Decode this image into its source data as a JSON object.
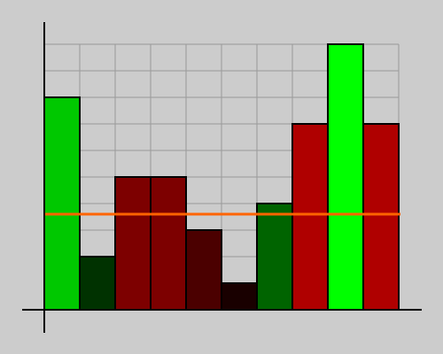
{
  "chart_data": {
    "type": "bar",
    "title": "",
    "xlabel": "",
    "ylabel": "",
    "categories": [
      "",
      "",
      "",
      "",
      "",
      "",
      "",
      "",
      "",
      ""
    ],
    "values": [
      8,
      2,
      5,
      5,
      3,
      1,
      4,
      7,
      10,
      7
    ],
    "bar_colors": [
      "#00c800",
      "#003200",
      "#7d0000",
      "#7d0000",
      "#4b0000",
      "#190000",
      "#006400",
      "#af0000",
      "#00ff00",
      "#af0000"
    ],
    "ylim": [
      0,
      10
    ],
    "grid": true,
    "grid_color": "#999999",
    "bar_edge_color": "#000000",
    "reference_line": {
      "value": 3.6,
      "color": "#ff6400"
    },
    "background": "#cccccc"
  }
}
